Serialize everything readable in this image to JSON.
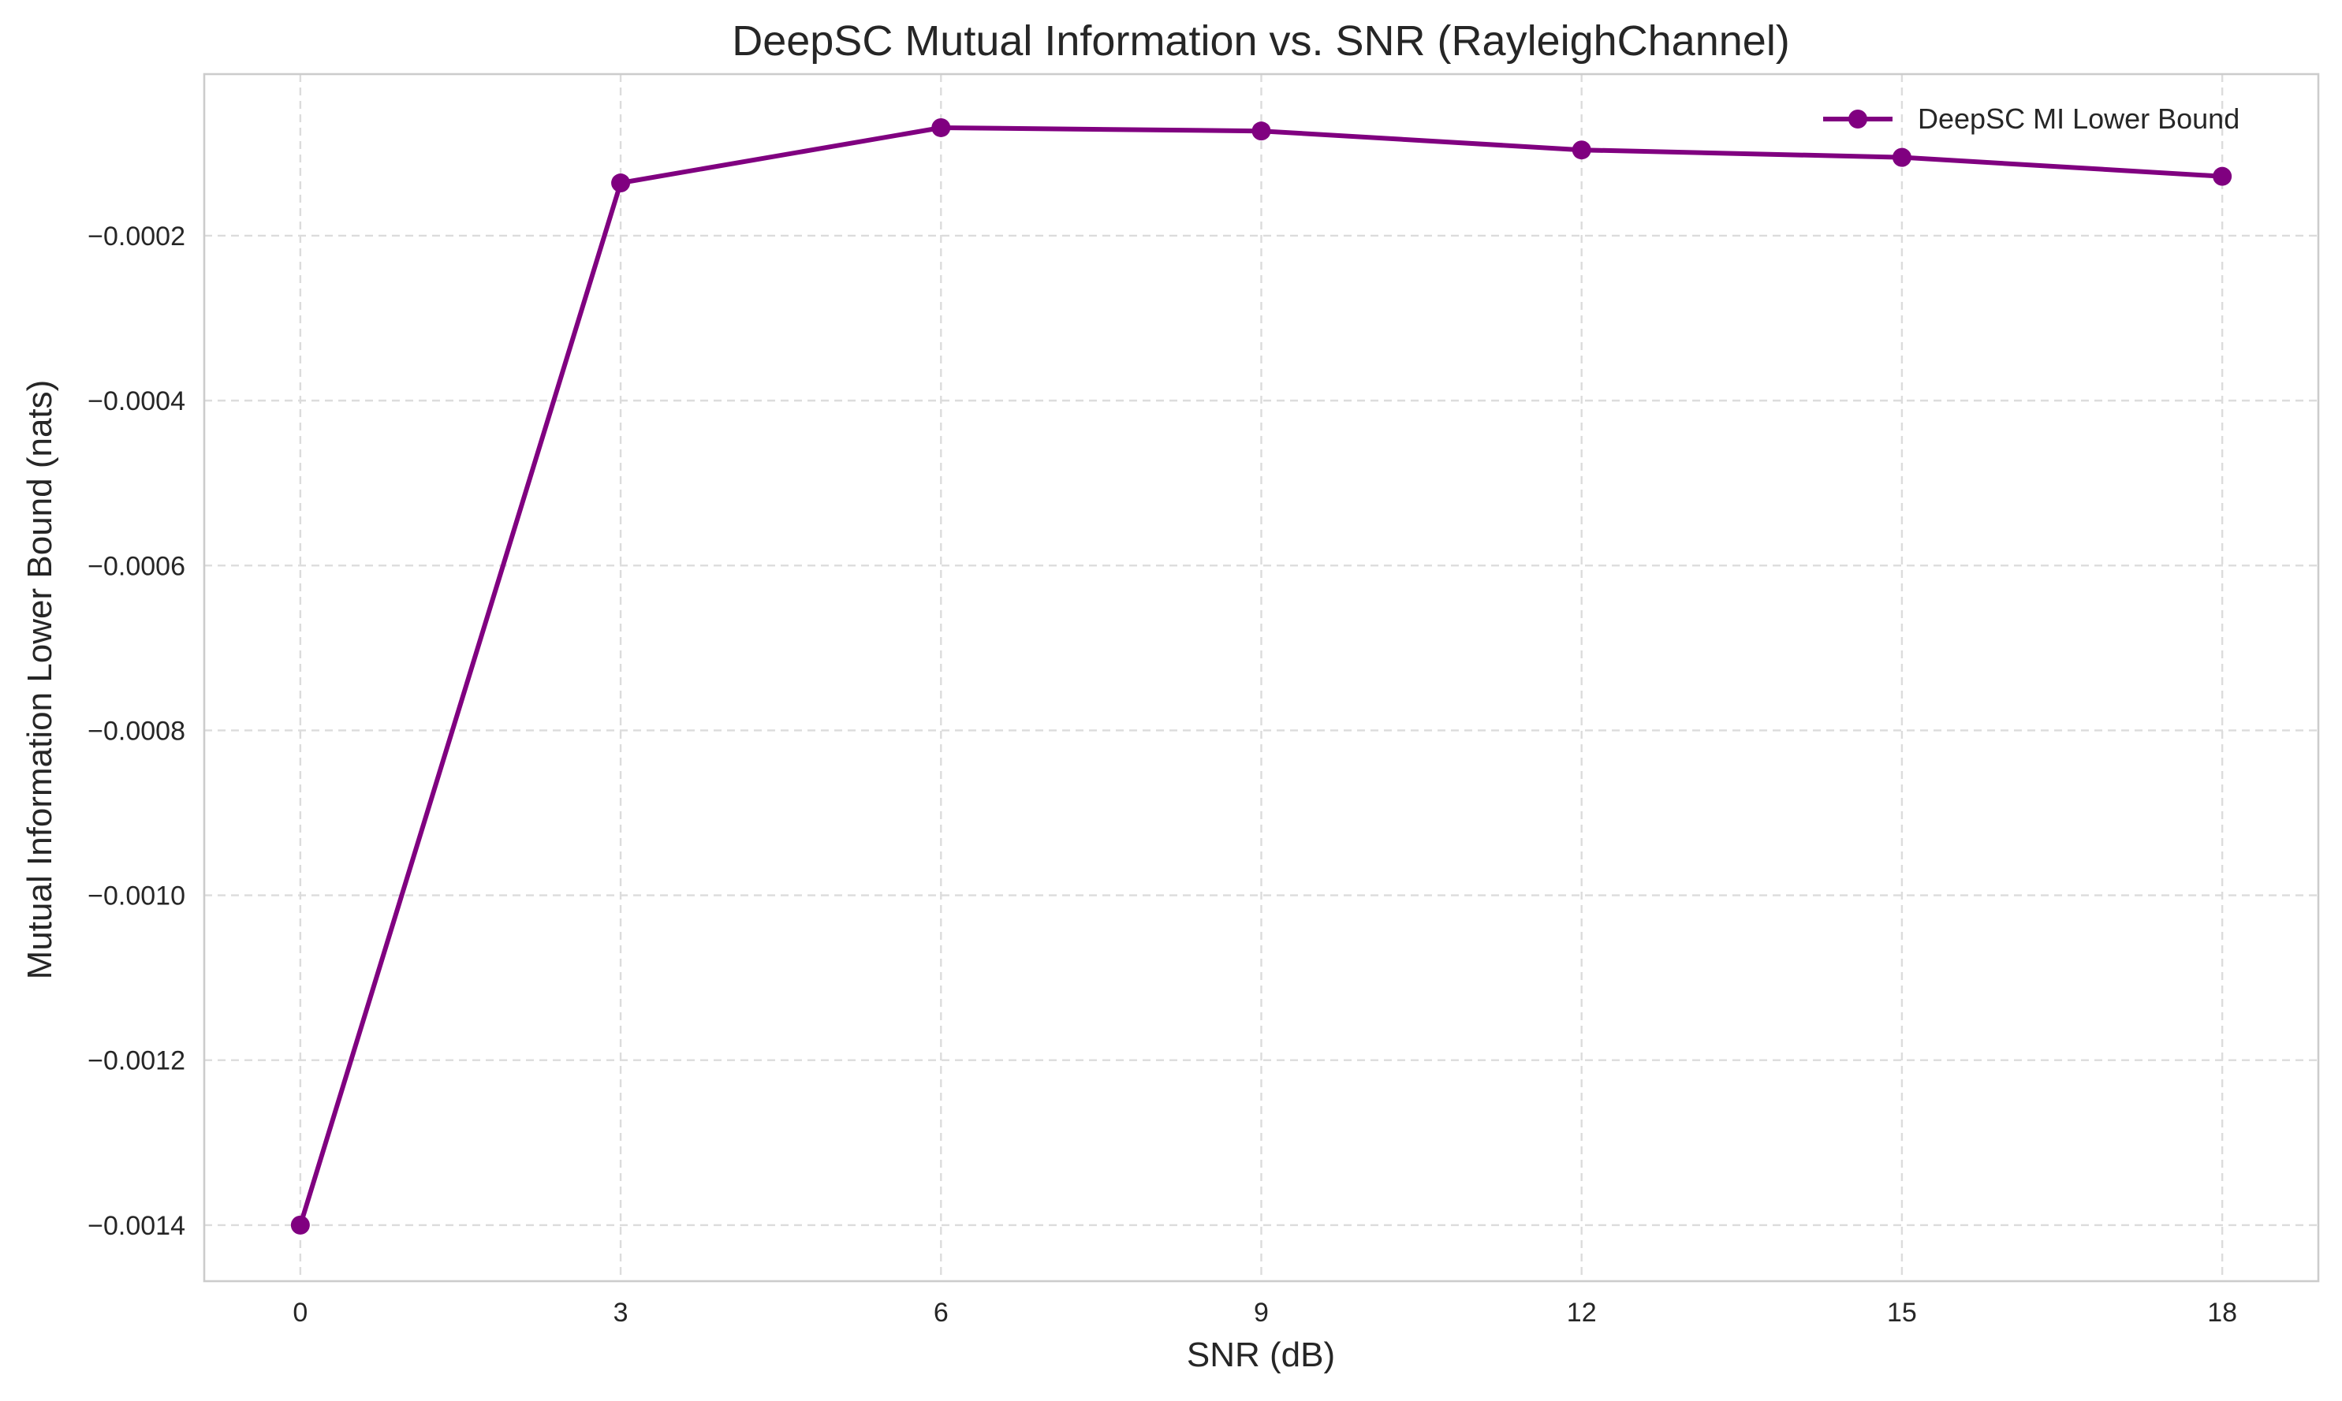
{
  "chart_data": {
    "type": "line",
    "title": "DeepSC Mutual Information vs. SNR (RayleighChannel)",
    "xlabel": "SNR (dB)",
    "ylabel": "Mutual Information Lower Bound (nats)",
    "x": [
      0,
      3,
      6,
      9,
      12,
      15,
      18
    ],
    "xticks": [
      0,
      3,
      6,
      9,
      12,
      15,
      18
    ],
    "xtick_labels": [
      "0",
      "3",
      "6",
      "9",
      "12",
      "15",
      "18"
    ],
    "yticks": [
      -0.0014,
      -0.0012,
      -0.001,
      -0.0008,
      -0.0006,
      -0.0004,
      -0.0002
    ],
    "ytick_labels": [
      "−0.0014",
      "−0.0012",
      "−0.0010",
      "−0.0008",
      "−0.0006",
      "−0.0004",
      "−0.0002"
    ],
    "xlim": [
      -0.9,
      18.9
    ],
    "ylim": [
      -0.001468,
      -4e-06
    ],
    "grid": true,
    "legend_position": "top-right",
    "series": [
      {
        "name": "DeepSC MI Lower Bound",
        "color": "#800080",
        "marker": "circle",
        "values": [
          -0.0014,
          -0.000136,
          -6.9e-05,
          -7.3e-05,
          -9.6e-05,
          -0.000105,
          -0.000128
        ]
      }
    ]
  }
}
